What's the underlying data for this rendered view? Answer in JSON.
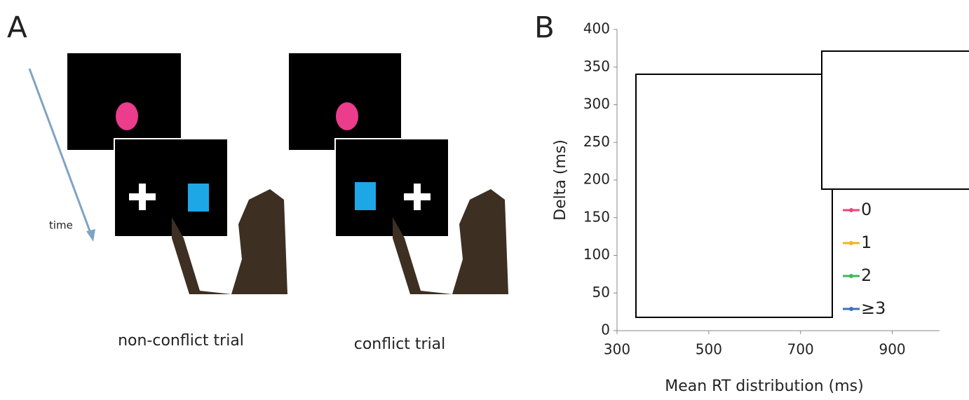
{
  "panel_a": {
    "label": "A",
    "time_label": "time",
    "captions": [
      "non-conflict trial",
      "conflict trial"
    ]
  },
  "chart_data": {
    "type": "line",
    "panel_label": "B",
    "xlabel": "Mean RT distribution (ms)",
    "ylabel": "Delta (ms)",
    "xlim": [
      300,
      1000
    ],
    "xticks": [
      300,
      500,
      700,
      900
    ],
    "ylim": [
      0,
      400
    ],
    "yticks": [
      0,
      50,
      100,
      150,
      200,
      250,
      300,
      350,
      400
    ],
    "series": [
      {
        "name": "0",
        "color": "#e8477a"
      },
      {
        "name": "1",
        "color": "#f5b21b"
      },
      {
        "name": "2",
        "color": "#3cb95a"
      },
      {
        "name": "≥3",
        "color": "#3c6fc0"
      }
    ]
  }
}
